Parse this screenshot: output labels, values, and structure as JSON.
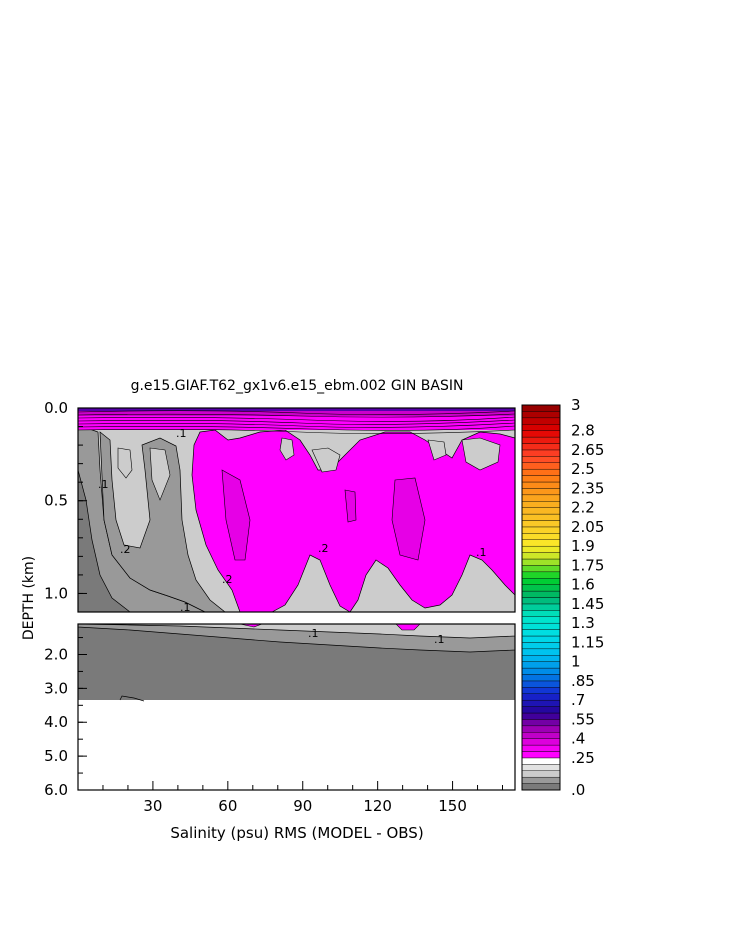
{
  "chart_data": {
    "type": "heatmap",
    "title": "g.e15.GIAF.T62_gx1v6.e15_ebm.002 GIN BASIN",
    "xlabel": "Salinity (psu) RMS (MODEL - OBS)",
    "ylabel": "DEPTH (km)",
    "x_ticks": [
      "30",
      "60",
      "90",
      "120",
      "150"
    ],
    "x_tick_values": [
      30,
      60,
      90,
      120,
      150
    ],
    "xlim": [
      0,
      175
    ],
    "upper_panel": {
      "ylim": [
        0.0,
        1.1
      ],
      "y_ticks": [
        "0.0",
        "0.5",
        "1.0"
      ],
      "y_tick_values": [
        0.0,
        0.5,
        1.0
      ]
    },
    "lower_panel": {
      "ylim": [
        1.1,
        6.0
      ],
      "y_ticks": [
        "2.0",
        "3.0",
        "4.0",
        "5.0",
        "6.0"
      ],
      "y_tick_values": [
        2.0,
        3.0,
        4.0,
        5.0,
        6.0
      ]
    },
    "contour_labels": [
      ".1",
      ".2",
      ".1",
      ".1",
      ".2",
      ".1",
      ".2",
      ".1",
      ".1"
    ],
    "colorbar": {
      "labels": [
        "3",
        "2.8",
        "2.65",
        "2.5",
        "2.35",
        "2.2",
        "2.05",
        "1.9",
        "1.75",
        "1.6",
        "1.45",
        "1.3",
        "1.15",
        "1",
        ".85",
        ".7",
        ".55",
        ".4",
        ".25",
        ".0"
      ],
      "label_values": [
        3,
        2.8,
        2.65,
        2.5,
        2.35,
        2.2,
        2.05,
        1.9,
        1.75,
        1.6,
        1.45,
        1.3,
        1.15,
        1,
        0.85,
        0.7,
        0.55,
        0.4,
        0.25,
        0
      ],
      "range": [
        0,
        3
      ],
      "interval": 0.05
    },
    "colors": {
      "level_0": "#7a7a7a",
      "level_1": "#999999",
      "level_2": "#cccccc",
      "magenta": "#ff00ff",
      "magenta_dark": "#e600e6"
    }
  }
}
